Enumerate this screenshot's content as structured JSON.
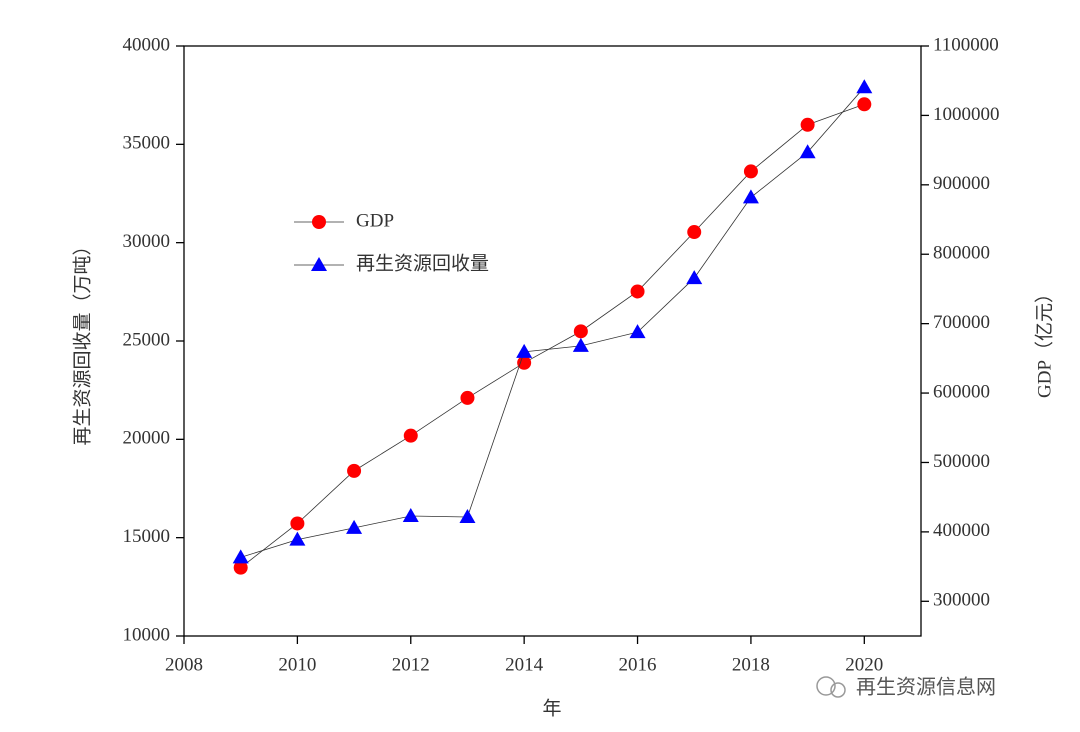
{
  "chart_data": {
    "type": "line",
    "x": [
      2009,
      2010,
      2011,
      2012,
      2013,
      2014,
      2015,
      2016,
      2017,
      2018,
      2019,
      2020
    ],
    "xlim": [
      2008,
      2021
    ],
    "xticks": [
      2008,
      2010,
      2012,
      2014,
      2016,
      2018,
      2020
    ],
    "ylim": [
      10000,
      40000
    ],
    "yticks": [
      10000,
      15000,
      20000,
      25000,
      30000,
      35000,
      40000
    ],
    "y2lim": [
      250000,
      1100000
    ],
    "y2ticks": [
      300000,
      400000,
      500000,
      600000,
      700000,
      800000,
      900000,
      1000000,
      1100000
    ],
    "xlabel": "年",
    "ylabel": "再生资源回收量（万吨）",
    "y2label": "GDP（亿元）",
    "legend": "upper left",
    "series": [
      {
        "name": "GDP",
        "color": "#ff0000",
        "marker": "circle",
        "axis": "y2",
        "values": [
          348500,
          412100,
          487900,
          538600,
          593000,
          643600,
          688900,
          746400,
          832000,
          919300,
          986500,
          1016000
        ]
      },
      {
        "name": "再生资源回收量",
        "color": "#0000ff",
        "marker": "triangle",
        "values": [
          14000,
          14900,
          15500,
          16100,
          16050,
          24450,
          24750,
          25450,
          28200,
          32300,
          34600,
          37900
        ]
      }
    ],
    "watermark": "再生资源信息网"
  }
}
